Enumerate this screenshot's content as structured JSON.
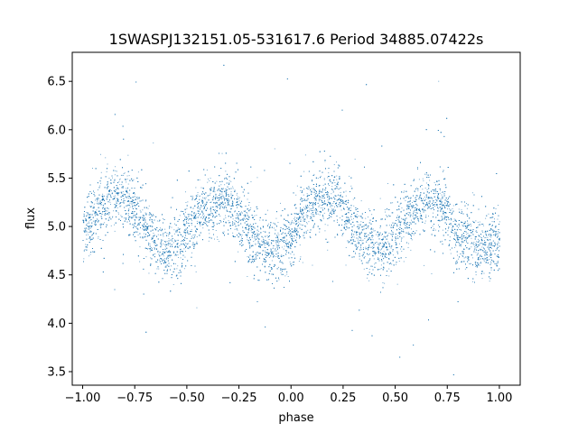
{
  "chart_data": {
    "type": "scatter",
    "title": "1SWASPJ132151.05-531617.6 Period 34885.07422s",
    "xlabel": "phase",
    "ylabel": "flux",
    "xlim": [
      -1.05,
      1.1
    ],
    "ylim": [
      3.36,
      6.8
    ],
    "xticks": [
      -1.0,
      -0.75,
      -0.5,
      -0.25,
      0.0,
      0.25,
      0.5,
      0.75,
      1.0
    ],
    "xtick_labels": [
      "−1.00",
      "−0.75",
      "−0.50",
      "−0.25",
      "0.00",
      "0.25",
      "0.50",
      "0.75",
      "1.00"
    ],
    "yticks": [
      3.5,
      4.0,
      4.5,
      5.0,
      5.5,
      6.0,
      6.5
    ],
    "ytick_labels": [
      "3.5",
      "4.0",
      "4.5",
      "5.0",
      "5.5",
      "6.0",
      "6.5"
    ],
    "grid": false,
    "marker_color": "#1f77b4",
    "series": [
      {
        "x_range": [
          -1.0,
          1.0
        ],
        "points_estimated": 22000,
        "trend": {
          "x": [
            -1.0,
            -0.95,
            -0.9,
            -0.85,
            -0.8,
            -0.75,
            -0.7,
            -0.65,
            -0.6,
            -0.55,
            -0.5,
            -0.45,
            -0.4,
            -0.35,
            -0.3,
            -0.25,
            -0.2,
            -0.15,
            -0.1,
            -0.05,
            0.0,
            0.05,
            0.1,
            0.15,
            0.2,
            0.25,
            0.3,
            0.35,
            0.4,
            0.45,
            0.5,
            0.55,
            0.6,
            0.65,
            0.7,
            0.75,
            0.8,
            0.85,
            0.9,
            0.95,
            1.0
          ],
          "y": [
            4.95,
            5.1,
            5.22,
            5.3,
            5.3,
            5.18,
            5.0,
            4.85,
            4.78,
            4.8,
            4.95,
            5.1,
            5.2,
            5.26,
            5.25,
            5.12,
            4.95,
            4.8,
            4.75,
            4.78,
            4.92,
            5.1,
            5.22,
            5.3,
            5.3,
            5.18,
            5.0,
            4.85,
            4.78,
            4.8,
            4.95,
            5.1,
            5.2,
            5.26,
            5.25,
            5.12,
            4.95,
            4.82,
            4.78,
            4.8,
            4.85
          ]
        }
      }
    ]
  }
}
